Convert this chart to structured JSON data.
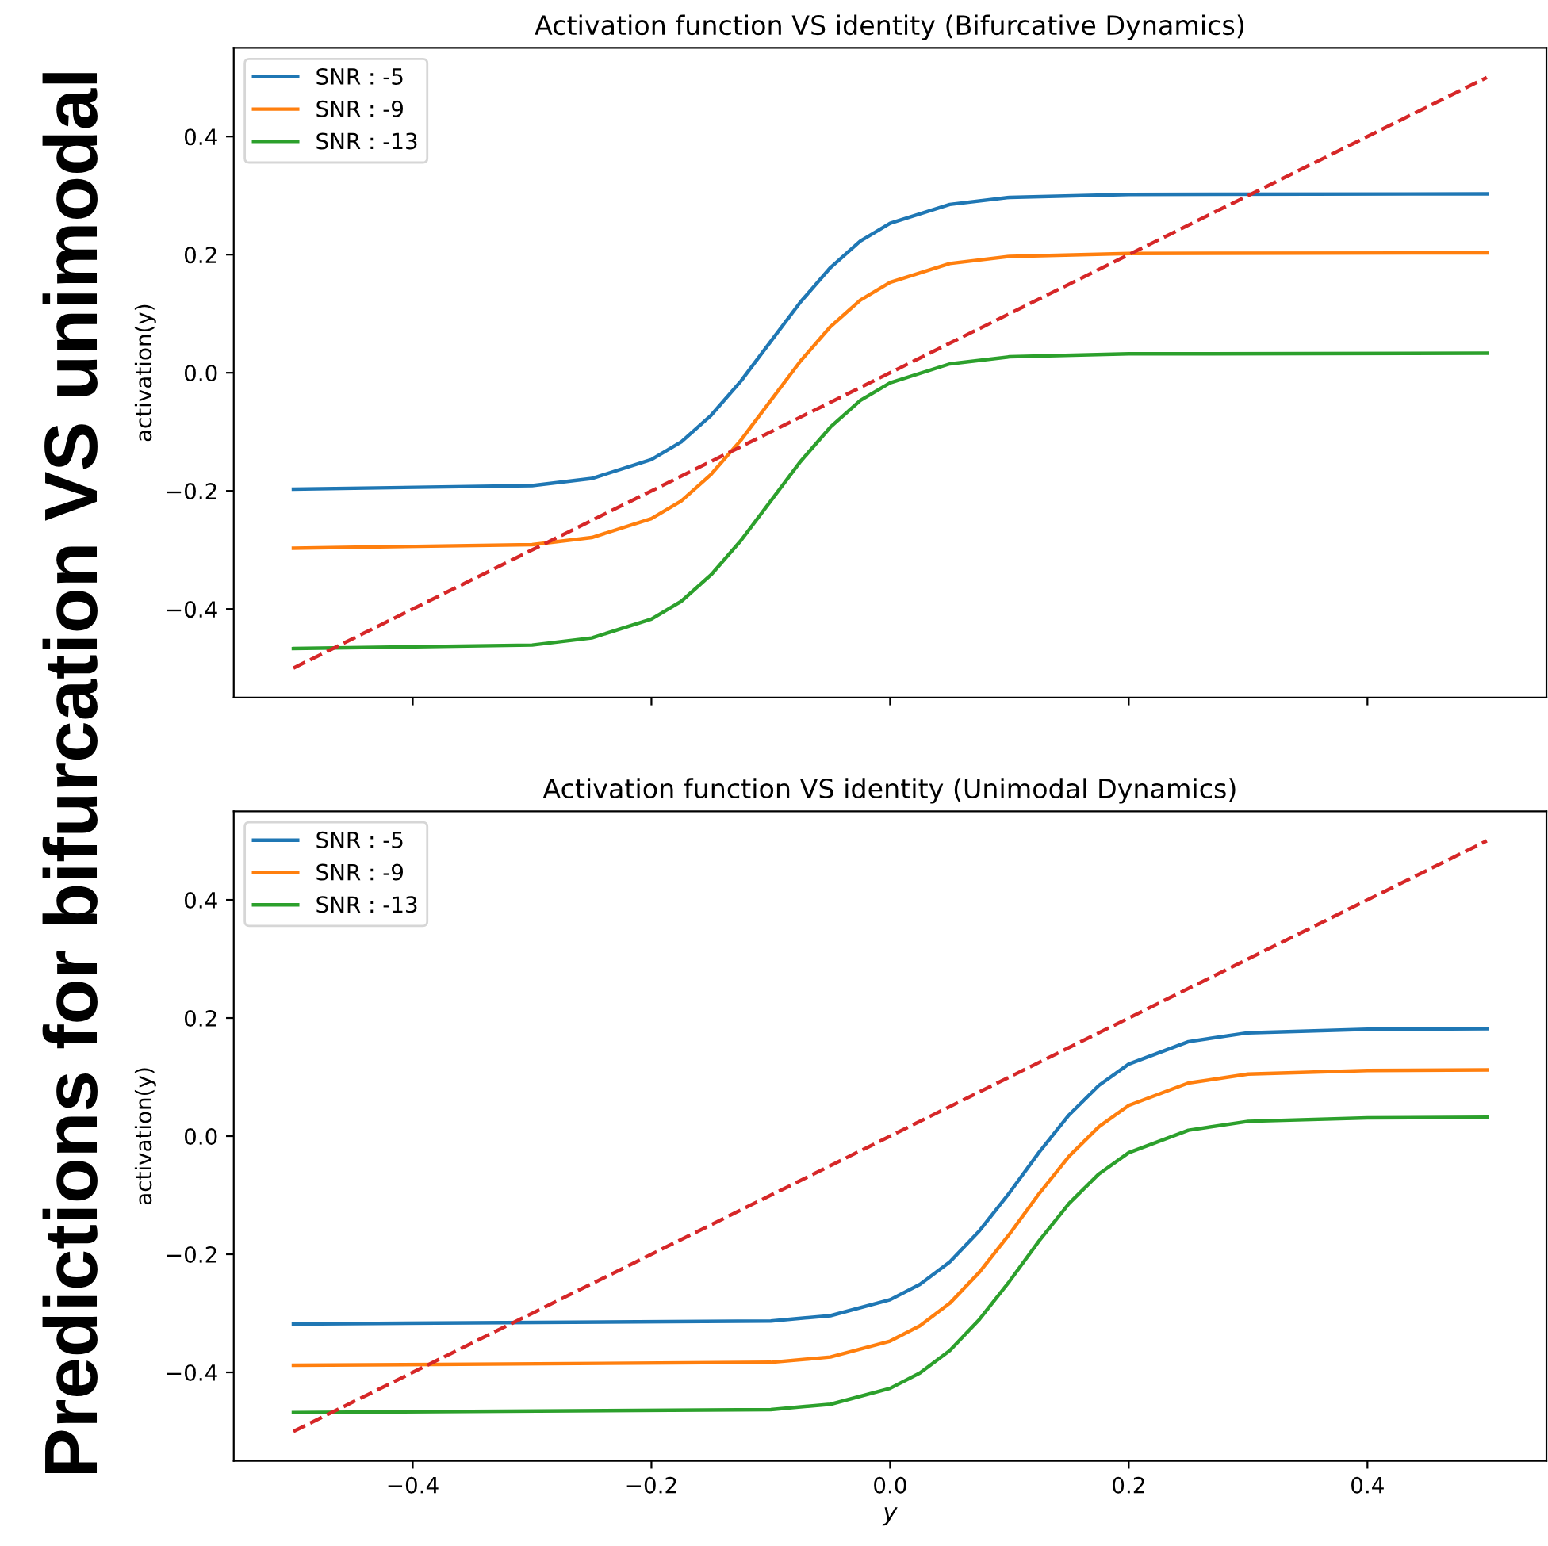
{
  "chart_data": [
    {
      "type": "line",
      "title": "Activation function VS identity (Bifurcative Dynamics)",
      "ylabel": "activation(y)",
      "xlim": [
        -0.55,
        0.55
      ],
      "ylim": [
        -0.55,
        0.55
      ],
      "xticks": [
        {
          "value": -0.4,
          "label": null
        },
        {
          "value": -0.2,
          "label": null
        },
        {
          "value": 0.0,
          "label": null
        },
        {
          "value": 0.2,
          "label": null
        },
        {
          "value": 0.4,
          "label": null
        }
      ],
      "yticks": [
        {
          "value": -0.4,
          "label": "−0.4"
        },
        {
          "value": -0.2,
          "label": "−0.2"
        },
        {
          "value": 0.0,
          "label": "0.0"
        },
        {
          "value": 0.2,
          "label": "0.2"
        },
        {
          "value": 0.4,
          "label": "0.4"
        }
      ],
      "tick_labels": "y",
      "legend": "top left",
      "grid": false,
      "marker": "none",
      "annotations": [
        "Predictions for bifurcation VS unimodal"
      ],
      "series": [
        {
          "name": "SNR : -5",
          "color": "#1f77b4",
          "x": [
            -0.5,
            -0.3,
            -0.25,
            -0.2,
            -0.175,
            -0.15,
            -0.125,
            -0.1,
            -0.075,
            -0.05,
            -0.025,
            0,
            0.05,
            0.1,
            0.2,
            0.5
          ],
          "values": [
            -0.197,
            -0.191,
            -0.179,
            -0.147,
            -0.117,
            -0.072,
            -0.014,
            0.053,
            0.12,
            0.178,
            0.223,
            0.253,
            0.285,
            0.297,
            0.302,
            0.303
          ]
        },
        {
          "name": "SNR : -9",
          "color": "#ff7f0e",
          "x": [
            -0.5,
            -0.3,
            -0.25,
            -0.2,
            -0.175,
            -0.15,
            -0.125,
            -0.1,
            -0.075,
            -0.05,
            -0.025,
            0,
            0.05,
            0.1,
            0.2,
            0.5
          ],
          "values": [
            -0.297,
            -0.291,
            -0.279,
            -0.247,
            -0.217,
            -0.172,
            -0.114,
            -0.047,
            0.02,
            0.078,
            0.123,
            0.153,
            0.185,
            0.197,
            0.202,
            0.203
          ]
        },
        {
          "name": "SNR : -13",
          "color": "#2ca02c",
          "x": [
            -0.5,
            -0.3,
            -0.25,
            -0.2,
            -0.175,
            -0.15,
            -0.125,
            -0.1,
            -0.075,
            -0.05,
            -0.025,
            0,
            0.05,
            0.1,
            0.2,
            0.5
          ],
          "values": [
            -0.467,
            -0.461,
            -0.449,
            -0.417,
            -0.387,
            -0.342,
            -0.284,
            -0.217,
            -0.15,
            -0.092,
            -0.047,
            -0.017,
            0.015,
            0.027,
            0.032,
            0.033
          ]
        },
        {
          "color": "#d62728",
          "line_style": "dashed",
          "x": [
            -0.5,
            0.5
          ],
          "values": [
            -0.5,
            0.5
          ]
        }
      ]
    },
    {
      "type": "line",
      "title": "Activation function VS identity (Unimodal Dynamics)",
      "xlabel": "y",
      "ylabel": "activation(y)",
      "xlim": [
        -0.55,
        0.55
      ],
      "ylim": [
        -0.55,
        0.55
      ],
      "xticks": [
        {
          "value": -0.4,
          "label": "−0.4"
        },
        {
          "value": -0.2,
          "label": "−0.2"
        },
        {
          "value": 0.0,
          "label": "0.0"
        },
        {
          "value": 0.2,
          "label": "0.2"
        },
        {
          "value": 0.4,
          "label": "0.4"
        }
      ],
      "yticks": [
        {
          "value": -0.4,
          "label": "−0.4"
        },
        {
          "value": -0.2,
          "label": "−0.2"
        },
        {
          "value": 0.0,
          "label": "0.0"
        },
        {
          "value": 0.2,
          "label": "0.2"
        },
        {
          "value": 0.4,
          "label": "0.4"
        }
      ],
      "legend": "top left",
      "grid": false,
      "marker": "none",
      "series": [
        {
          "name": "SNR : -5",
          "color": "#1f77b4",
          "x": [
            -0.5,
            -0.1,
            -0.05,
            0,
            0.025,
            0.05,
            0.075,
            0.1,
            0.125,
            0.15,
            0.175,
            0.2,
            0.25,
            0.3,
            0.4,
            0.5
          ],
          "values": [
            -0.318,
            -0.313,
            -0.304,
            -0.277,
            -0.251,
            -0.213,
            -0.16,
            -0.096,
            -0.027,
            0.036,
            0.086,
            0.122,
            0.16,
            0.175,
            0.181,
            0.182
          ]
        },
        {
          "name": "SNR : -9",
          "color": "#ff7f0e",
          "x": [
            -0.5,
            -0.1,
            -0.05,
            0,
            0.025,
            0.05,
            0.075,
            0.1,
            0.125,
            0.15,
            0.175,
            0.2,
            0.25,
            0.3,
            0.4,
            0.5
          ],
          "values": [
            -0.388,
            -0.383,
            -0.374,
            -0.347,
            -0.321,
            -0.283,
            -0.23,
            -0.166,
            -0.097,
            -0.034,
            0.016,
            0.052,
            0.09,
            0.105,
            0.111,
            0.112
          ]
        },
        {
          "name": "SNR : -13",
          "color": "#2ca02c",
          "x": [
            -0.5,
            -0.1,
            -0.05,
            0,
            0.025,
            0.05,
            0.075,
            0.1,
            0.125,
            0.15,
            0.175,
            0.2,
            0.25,
            0.3,
            0.4,
            0.5
          ],
          "values": [
            -0.468,
            -0.463,
            -0.454,
            -0.427,
            -0.401,
            -0.363,
            -0.31,
            -0.246,
            -0.177,
            -0.114,
            -0.064,
            -0.028,
            0.01,
            0.025,
            0.031,
            0.032
          ]
        },
        {
          "color": "#d62728",
          "line_style": "dashed",
          "x": [
            -0.5,
            0.5
          ],
          "values": [
            -0.5,
            0.5
          ]
        }
      ]
    }
  ]
}
